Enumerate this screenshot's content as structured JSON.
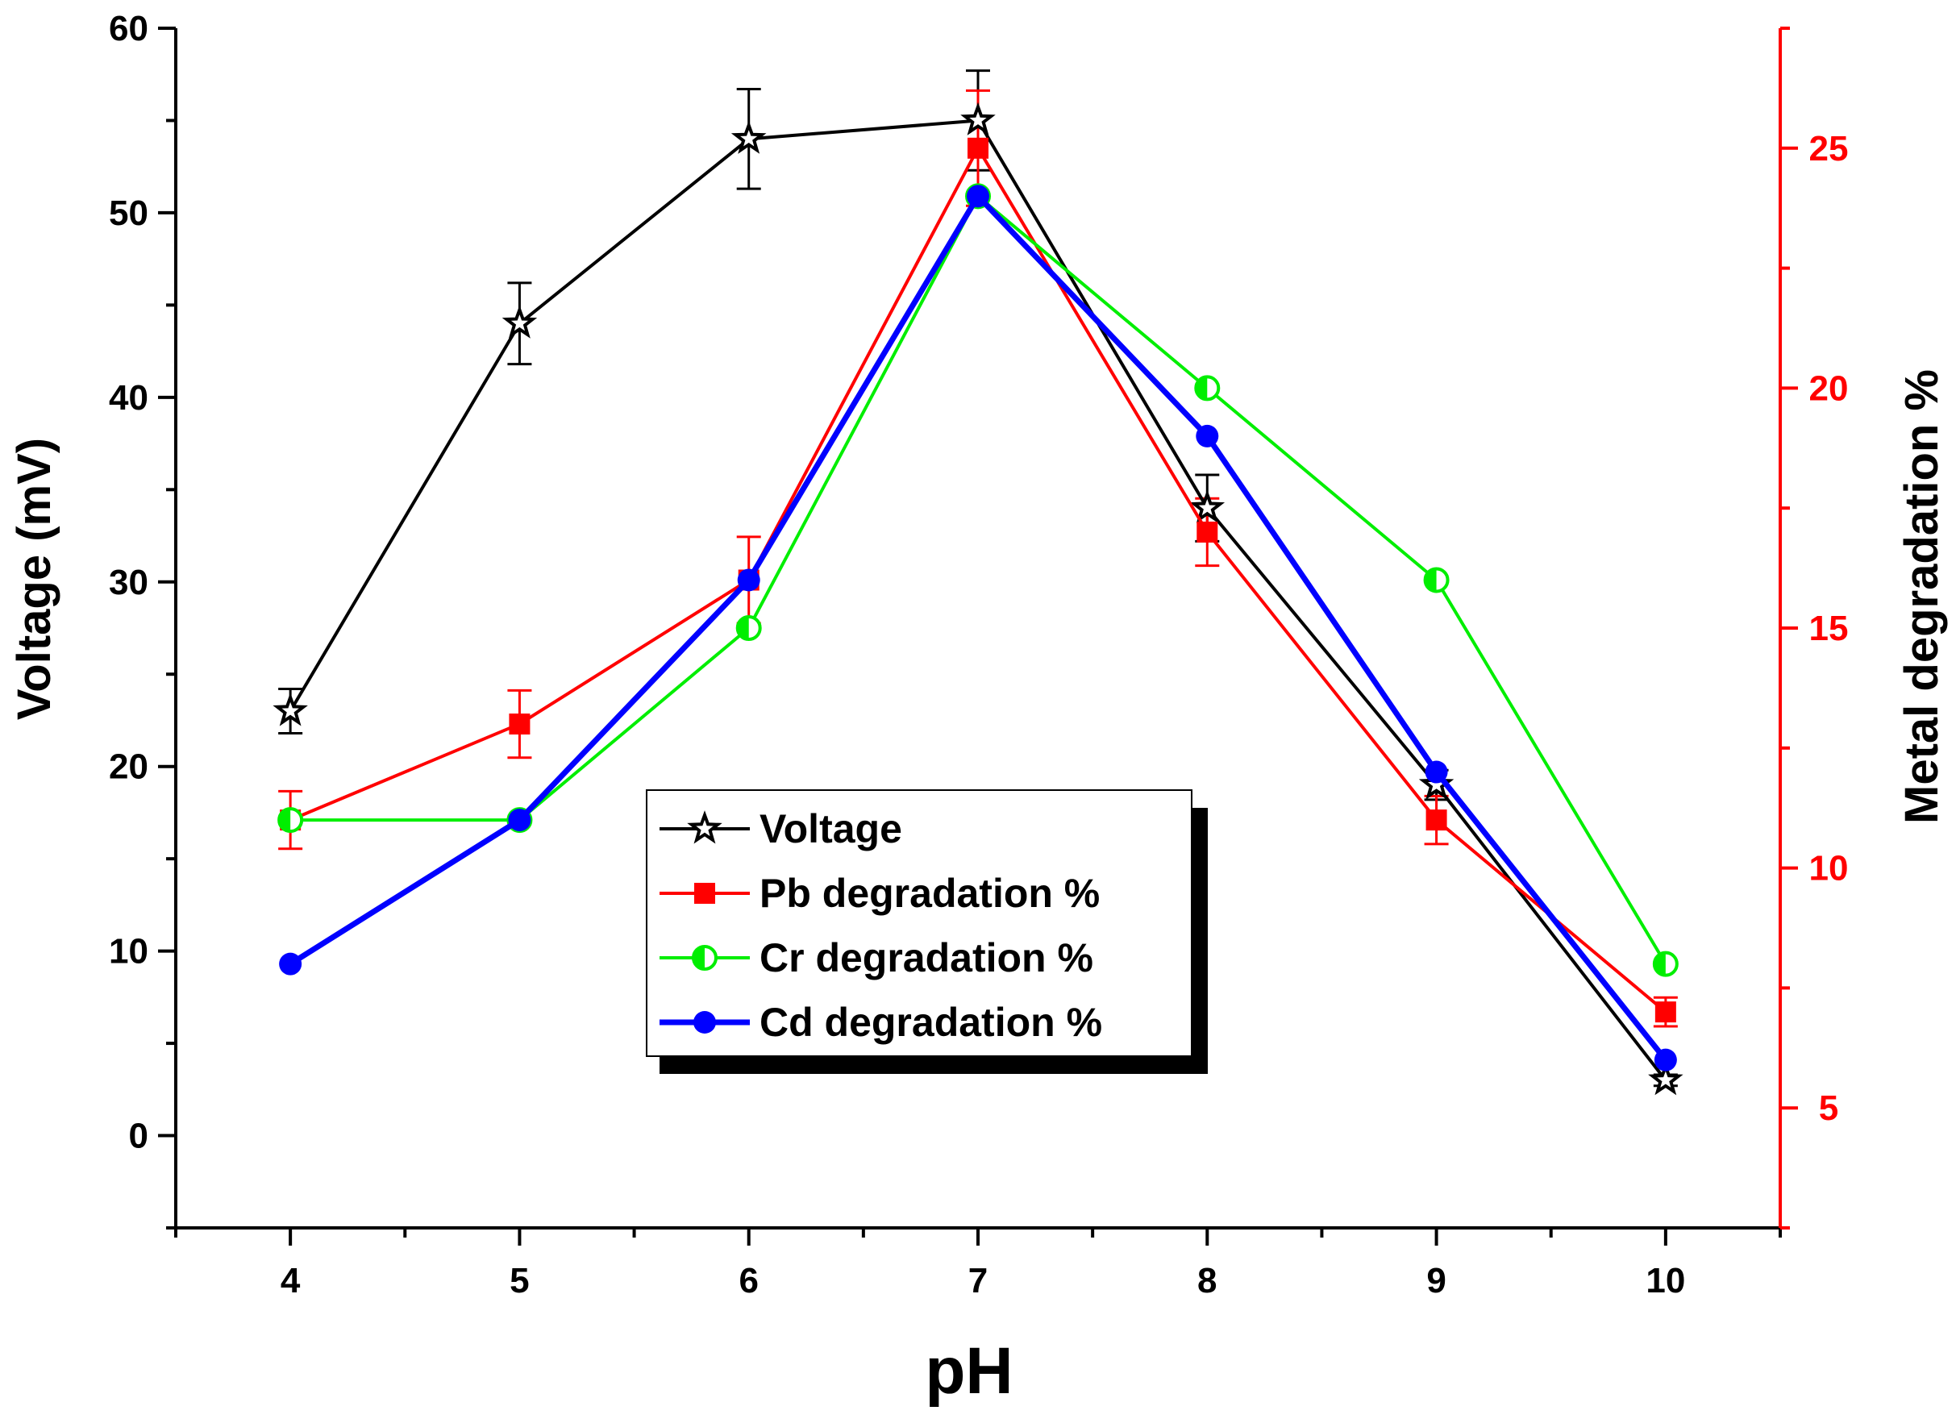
{
  "chart_data": {
    "type": "line",
    "title": "",
    "xlabel": "pH",
    "ylabel_left": "Voltage (mV)",
    "ylabel_right": "Metal degradation %",
    "x": [
      4,
      5,
      6,
      7,
      8,
      9,
      10
    ],
    "x_ticks": [
      "4",
      "5",
      "6",
      "7",
      "8",
      "9",
      "10"
    ],
    "xlim": [
      3.5,
      10.5
    ],
    "ylim_left": [
      -5,
      60
    ],
    "ylim_right": [
      2.5,
      27.5
    ],
    "y_ticks_left": [
      "0",
      "10",
      "20",
      "30",
      "40",
      "50",
      "60"
    ],
    "y_ticks_right": [
      "5",
      "10",
      "15",
      "20",
      "25"
    ],
    "right_axis_color": "#ff0000",
    "series": [
      {
        "name": "Voltage",
        "axis": "left",
        "color": "#000000",
        "marker": "star",
        "values": [
          23,
          44,
          54,
          55,
          34,
          19,
          3
        ],
        "errors": [
          1.2,
          2.2,
          2.7,
          2.7,
          1.8,
          0.8,
          0.3
        ]
      },
      {
        "name": "Pb degradation %",
        "axis": "right",
        "color": "#ff0000",
        "marker": "square",
        "values": [
          11,
          13,
          16,
          25,
          17,
          11,
          7
        ],
        "errors": [
          0.6,
          0.7,
          0.9,
          1.2,
          0.7,
          0.5,
          0.3
        ]
      },
      {
        "name": "Cr degradation %",
        "axis": "right",
        "color": "#00ee00",
        "marker": "half-circle",
        "values": [
          11,
          11,
          15,
          24,
          20,
          16,
          8
        ],
        "errors": [
          0,
          0,
          0,
          0,
          0,
          0,
          0
        ]
      },
      {
        "name": "Cd degradation %",
        "axis": "right",
        "color": "#0000ff",
        "marker": "circle",
        "values": [
          8,
          11,
          16,
          24,
          19,
          12,
          6
        ],
        "errors": [
          0,
          0,
          0,
          0,
          0,
          0,
          0
        ]
      }
    ],
    "legend_position": "center"
  }
}
